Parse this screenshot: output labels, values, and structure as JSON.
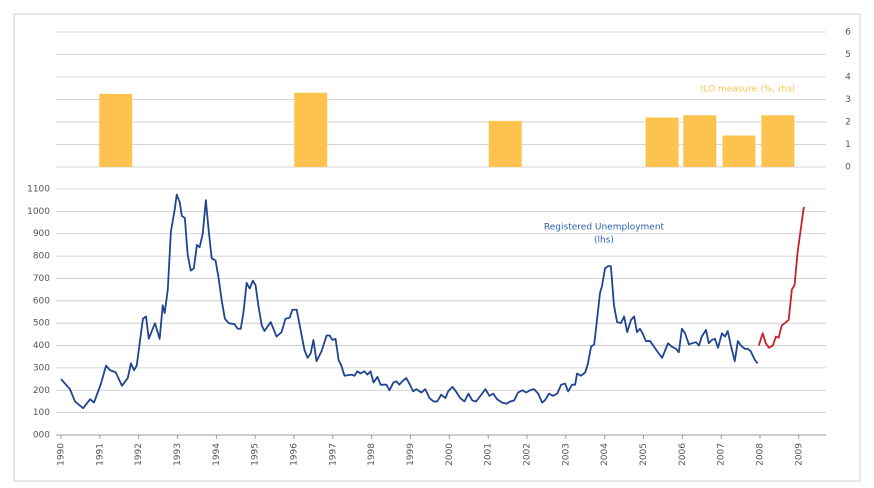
{
  "chart_data": [
    {
      "type": "bar",
      "xlim": [
        1990,
        2009.7
      ],
      "y2lim": [
        0,
        6
      ],
      "y2ticks": [
        0,
        1,
        2,
        3,
        4,
        5,
        6
      ],
      "grid": true,
      "series": [
        {
          "name": "ILO measure (%, rhs)",
          "color": "#fec34f",
          "axis": "y2",
          "x": [
            1991.41,
            1996.43,
            2001.44,
            2005.48,
            2006.45,
            2007.46,
            2008.46
          ],
          "values": [
            3.25,
            3.3,
            2.05,
            2.2,
            2.3,
            1.4,
            2.3
          ]
        }
      ]
    },
    {
      "type": "line",
      "xlim": [
        1990,
        2009.7
      ],
      "xticks": [
        1990,
        1991,
        1992,
        1993,
        1994,
        1995,
        1996,
        1997,
        1998,
        1999,
        2000,
        2001,
        2002,
        2003,
        2004,
        2005,
        2006,
        2007,
        2008,
        2009
      ],
      "ylim": [
        0,
        1100
      ],
      "yticks": [
        {
          "value": 0,
          "label": "000"
        },
        100,
        200,
        300,
        400,
        500,
        600,
        700,
        800,
        900,
        1000,
        1100
      ],
      "grid": true,
      "series": [
        {
          "label": [
            "Registered Unemployment",
            "(lhs)"
          ],
          "color": "#1f4591",
          "x": [
            1990.0,
            1990.23,
            1990.36,
            1990.57,
            1990.75,
            1990.85,
            1991.03,
            1991.16,
            1991.26,
            1991.41,
            1991.57,
            1991.72,
            1991.8,
            1991.88,
            1991.95,
            1992.11,
            1992.19,
            1992.26,
            1992.42,
            1992.54,
            1992.62,
            1992.67,
            1992.75,
            1992.83,
            1992.93,
            1992.98,
            1993.06,
            1993.11,
            1993.19,
            1993.26,
            1993.34,
            1993.42,
            1993.5,
            1993.57,
            1993.65,
            1993.73,
            1993.8,
            1993.88,
            1993.98,
            1994.06,
            1994.14,
            1994.22,
            1994.32,
            1994.47,
            1994.55,
            1994.63,
            1994.7,
            1994.78,
            1994.86,
            1994.94,
            1995.01,
            1995.09,
            1995.17,
            1995.24,
            1995.4,
            1995.55,
            1995.68,
            1995.78,
            1995.89,
            1995.96,
            1996.07,
            1996.17,
            1996.27,
            1996.35,
            1996.43,
            1996.5,
            1996.58,
            1996.71,
            1996.84,
            1996.92,
            1996.99,
            1997.07,
            1997.15,
            1997.22,
            1997.3,
            1997.48,
            1997.56,
            1997.63,
            1997.71,
            1997.81,
            1997.89,
            1997.97,
            1998.05,
            1998.15,
            1998.23,
            1998.38,
            1998.46,
            1998.56,
            1998.64,
            1998.71,
            1998.79,
            1998.89,
            1998.97,
            1999.07,
            1999.15,
            1999.28,
            1999.38,
            1999.49,
            1999.59,
            1999.69,
            1999.79,
            1999.9,
            1999.97,
            2000.08,
            2000.15,
            2000.28,
            2000.39,
            2000.49,
            2000.59,
            2000.69,
            2000.8,
            2000.93,
            2001.03,
            2001.13,
            2001.23,
            2001.36,
            2001.47,
            2001.57,
            2001.67,
            2001.77,
            2001.88,
            2001.98,
            2002.08,
            2002.18,
            2002.29,
            2002.39,
            2002.46,
            2002.57,
            2002.67,
            2002.78,
            2002.88,
            2002.98,
            2003.06,
            2003.16,
            2003.24,
            2003.29,
            2003.39,
            2003.5,
            2003.57,
            2003.65,
            2003.73,
            2003.8,
            2003.88,
            2003.93,
            2004.01,
            2004.09,
            2004.16,
            2004.24,
            2004.32,
            2004.42,
            2004.5,
            2004.58,
            2004.68,
            2004.76,
            2004.83,
            2004.91,
            2004.99,
            2005.06,
            2005.17,
            2005.27,
            2005.37,
            2005.48,
            2005.55,
            2005.63,
            2005.73,
            2005.84,
            2005.91,
            2005.99,
            2006.07,
            2006.17,
            2006.25,
            2006.35,
            2006.43,
            2006.5,
            2006.61,
            2006.68,
            2006.76,
            2006.84,
            2006.92,
            2007.02,
            2007.1,
            2007.17,
            2007.25,
            2007.35,
            2007.43,
            2007.51,
            2007.61,
            2007.69,
            2007.76,
            2007.87,
            2007.94
          ],
          "values": [
            250,
            205,
            150,
            120,
            160,
            145,
            230,
            310,
            290,
            280,
            220,
            255,
            320,
            290,
            310,
            520,
            530,
            430,
            500,
            430,
            580,
            545,
            650,
            910,
            1010,
            1075,
            1040,
            980,
            970,
            810,
            735,
            745,
            850,
            840,
            900,
            1050,
            920,
            790,
            780,
            700,
            600,
            520,
            500,
            495,
            475,
            475,
            550,
            680,
            655,
            690,
            670,
            570,
            490,
            465,
            505,
            440,
            460,
            520,
            525,
            560,
            560,
            470,
            380,
            345,
            365,
            425,
            330,
            375,
            445,
            445,
            425,
            430,
            335,
            310,
            265,
            270,
            265,
            285,
            275,
            285,
            270,
            285,
            235,
            260,
            225,
            225,
            200,
            235,
            240,
            225,
            240,
            255,
            230,
            195,
            205,
            190,
            205,
            165,
            150,
            150,
            180,
            165,
            195,
            215,
            200,
            165,
            150,
            185,
            155,
            150,
            175,
            205,
            175,
            185,
            160,
            145,
            140,
            150,
            155,
            190,
            200,
            190,
            200,
            205,
            185,
            145,
            155,
            185,
            175,
            185,
            225,
            230,
            195,
            225,
            225,
            275,
            265,
            280,
            320,
            395,
            405,
            510,
            635,
            665,
            745,
            755,
            755,
            580,
            505,
            500,
            530,
            460,
            515,
            530,
            460,
            475,
            450,
            420,
            420,
            395,
            370,
            345,
            375,
            410,
            395,
            385,
            370,
            475,
            455,
            405,
            410,
            415,
            400,
            440,
            470,
            410,
            425,
            430,
            390,
            455,
            440,
            465,
            400,
            330,
            420,
            400,
            385,
            385,
            375,
            335,
            320
          ]
        },
        {
          "color": "#c8202f",
          "x": [
            2007.97,
            2008.07,
            2008.15,
            2008.23,
            2008.33,
            2008.41,
            2008.48,
            2008.56,
            2008.64,
            2008.74,
            2008.82,
            2008.89,
            2008.97,
            2009.05,
            2009.13
          ],
          "values": [
            400,
            455,
            410,
            390,
            400,
            440,
            435,
            490,
            500,
            515,
            650,
            670,
            820,
            920,
            1020
          ]
        }
      ]
    }
  ]
}
